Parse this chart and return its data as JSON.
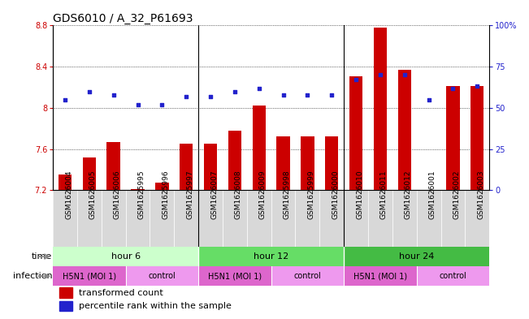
{
  "title": "GDS6010 / A_32_P61693",
  "samples": [
    "GSM1626004",
    "GSM1626005",
    "GSM1626006",
    "GSM1625995",
    "GSM1625996",
    "GSM1625997",
    "GSM1626007",
    "GSM1626008",
    "GSM1626009",
    "GSM1625998",
    "GSM1625999",
    "GSM1626000",
    "GSM1626010",
    "GSM1626011",
    "GSM1626012",
    "GSM1626001",
    "GSM1626002",
    "GSM1626003"
  ],
  "bar_values": [
    7.35,
    7.52,
    7.67,
    7.21,
    7.27,
    7.65,
    7.65,
    7.78,
    8.02,
    7.72,
    7.72,
    7.72,
    8.31,
    8.78,
    8.37,
    7.2,
    8.21,
    8.21
  ],
  "dot_values": [
    55,
    60,
    58,
    52,
    52,
    57,
    57,
    60,
    62,
    58,
    58,
    58,
    67,
    70,
    70,
    55,
    62,
    63
  ],
  "ylim_left": [
    7.2,
    8.8
  ],
  "ylim_right": [
    0,
    100
  ],
  "yticks_left": [
    7.2,
    7.6,
    8.0,
    8.4,
    8.8
  ],
  "ytick_labels_left": [
    "7.2",
    "7.6",
    "8",
    "8.4",
    "8.8"
  ],
  "yticks_right": [
    0,
    25,
    50,
    75,
    100
  ],
  "ytick_labels_right": [
    "0",
    "25",
    "50",
    "75",
    "100%"
  ],
  "bar_color": "#cc0000",
  "dot_color": "#2222cc",
  "bar_width": 0.55,
  "groups": [
    {
      "label": "hour 6",
      "start": 0,
      "end": 6,
      "color": "#ccffcc"
    },
    {
      "label": "hour 12",
      "start": 6,
      "end": 12,
      "color": "#66dd66"
    },
    {
      "label": "hour 24",
      "start": 12,
      "end": 18,
      "color": "#44bb44"
    }
  ],
  "infections": [
    {
      "label": "H5N1 (MOI 1)",
      "start": 0,
      "end": 3,
      "color": "#dd66cc"
    },
    {
      "label": "control",
      "start": 3,
      "end": 6,
      "color": "#ee99ee"
    },
    {
      "label": "H5N1 (MOI 1)",
      "start": 6,
      "end": 9,
      "color": "#dd66cc"
    },
    {
      "label": "control",
      "start": 9,
      "end": 12,
      "color": "#ee99ee"
    },
    {
      "label": "H5N1 (MOI 1)",
      "start": 12,
      "end": 15,
      "color": "#dd66cc"
    },
    {
      "label": "control",
      "start": 15,
      "end": 18,
      "color": "#ee99ee"
    }
  ],
  "legend_red": "transformed count",
  "legend_blue": "percentile rank within the sample",
  "title_fontsize": 10,
  "tick_fontsize": 7,
  "label_fontsize": 8,
  "sample_fontsize": 6.5,
  "group_seps": [
    6,
    12
  ],
  "infection_seps": [
    3,
    6,
    9,
    12,
    15
  ]
}
